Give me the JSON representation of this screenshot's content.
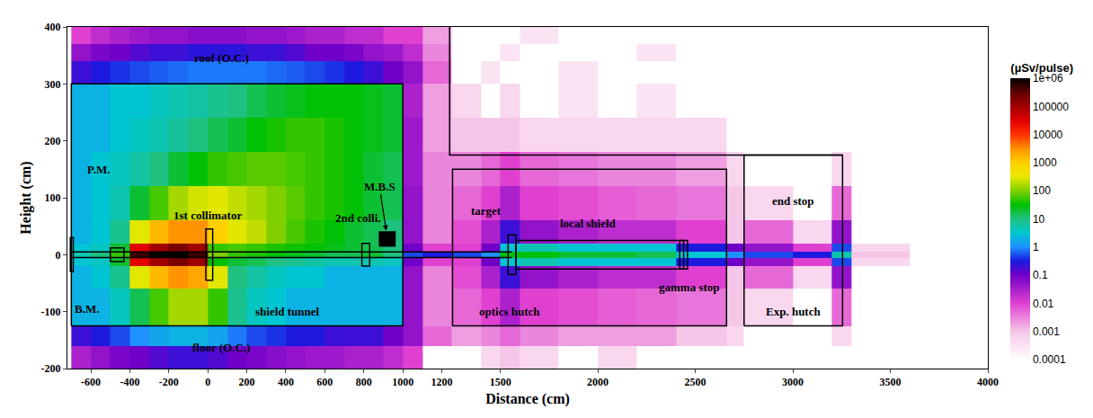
{
  "chart_data": {
    "type": "heatmap",
    "x_label": "Distance (cm)",
    "y_label": "Height (cm)",
    "xlim": [
      -720,
      4000
    ],
    "xticks": [
      -600,
      -400,
      -200,
      0,
      200,
      400,
      600,
      800,
      1000,
      1200,
      1500,
      2000,
      2500,
      3000,
      3500,
      4000
    ],
    "ylim": [
      -200,
      400
    ],
    "yticks": [
      -200,
      -100,
      0,
      100,
      200,
      300,
      400
    ],
    "x_edges": [
      -700,
      -600,
      -500,
      -400,
      -300,
      -200,
      -100,
      0,
      100,
      200,
      300,
      400,
      500,
      600,
      700,
      800,
      900,
      1000,
      1100,
      1250,
      1400,
      1500,
      1600,
      1800,
      2000,
      2200,
      2400,
      2660,
      2750,
      3000,
      3200,
      3300,
      3600,
      4000
    ],
    "y_edges": [
      -200,
      -160,
      -125,
      -60,
      -20,
      -6,
      6,
      20,
      60,
      120,
      180,
      240,
      300,
      340,
      370,
      400
    ],
    "cells": [
      [
        0.03,
        0.05,
        0.08,
        0.1,
        0.15,
        0.2,
        0.2,
        0.15,
        0.1,
        0.08,
        0.06,
        0.05,
        0.04,
        0.04,
        0.03,
        0.03,
        0.02,
        0.01,
        null,
        null,
        0.0005,
        0.001,
        0.0005,
        null,
        0.0005,
        null,
        null,
        null,
        null,
        null,
        null,
        null,
        null
      ],
      [
        0.2,
        0.3,
        0.5,
        1,
        1.5,
        2,
        2,
        1.5,
        0.8,
        0.5,
        0.4,
        0.3,
        0.3,
        0.2,
        0.2,
        0.2,
        0.1,
        0.05,
        0.005,
        0.002,
        0.003,
        0.005,
        0.003,
        0.002,
        0.002,
        0.002,
        0.001,
        0.0005,
        null,
        null,
        0.0005,
        null,
        null
      ],
      [
        2,
        2,
        4,
        15,
        60,
        150,
        150,
        50,
        8,
        4,
        3,
        2,
        2,
        2,
        2,
        2,
        2,
        0.05,
        0.003,
        0.005,
        0.01,
        0.03,
        0.01,
        0.008,
        0.006,
        0.005,
        0.004,
        0.001,
        0.0005,
        null,
        0.005,
        null,
        null
      ],
      [
        2,
        3,
        8,
        300,
        1500,
        3000,
        2000,
        300,
        10,
        6,
        4,
        3,
        3,
        2,
        2,
        2,
        2,
        0.05,
        0.003,
        0.008,
        0.03,
        0.2,
        0.05,
        0.03,
        0.02,
        0.02,
        0.01,
        0.001,
        0.005,
        0.0005,
        0.05,
        null,
        null
      ],
      [
        3,
        4,
        20,
        30000,
        100000,
        200000,
        100000,
        30,
        20,
        15,
        10,
        8,
        6,
        5,
        5,
        5,
        4,
        0.1,
        0.01,
        0.01,
        0.1,
        3,
        5,
        3,
        3,
        3,
        0.3,
        0.1,
        0.05,
        0.01,
        0.5,
        0.0005,
        null
      ],
      [
        5,
        10,
        50,
        500000,
        1000000,
        1000000,
        500000,
        100,
        50,
        40,
        30,
        25,
        20,
        15,
        15,
        20,
        10,
        0.5,
        0.3,
        0.5,
        1,
        30,
        30,
        20,
        20,
        15,
        3,
        1,
        0.5,
        0.3,
        5,
        0.001,
        null
      ],
      [
        3,
        4,
        20,
        30000,
        100000,
        200000,
        100000,
        50,
        60,
        50,
        40,
        35,
        30,
        25,
        20,
        15,
        10,
        0.1,
        0.01,
        0.01,
        0.1,
        3,
        5,
        3,
        3,
        3,
        0.3,
        0.1,
        0.05,
        0.01,
        0.5,
        0.0005,
        null
      ],
      [
        2,
        3,
        8,
        300,
        1500,
        3000,
        3000,
        1000,
        300,
        200,
        100,
        60,
        40,
        30,
        20,
        15,
        10,
        0.05,
        0.003,
        0.008,
        0.03,
        0.2,
        0.05,
        0.03,
        0.02,
        0.02,
        0.01,
        0.001,
        0.005,
        0.0005,
        0.05,
        null,
        null
      ],
      [
        2,
        3,
        5,
        20,
        60,
        150,
        250,
        300,
        200,
        150,
        100,
        70,
        50,
        40,
        30,
        20,
        15,
        0.05,
        0.003,
        0.005,
        0.01,
        0.03,
        0.01,
        0.008,
        0.006,
        0.005,
        0.004,
        0.001,
        0.0005,
        null,
        0.005,
        null,
        null
      ],
      [
        2,
        3,
        4,
        6,
        10,
        20,
        30,
        50,
        60,
        70,
        70,
        60,
        50,
        40,
        30,
        20,
        15,
        0.04,
        0.003,
        0.003,
        0.005,
        0.01,
        0.005,
        0.004,
        0.003,
        0.003,
        0.002,
        0.0005,
        null,
        null,
        0.0005,
        null,
        null
      ],
      [
        2,
        2,
        3,
        4,
        5,
        7,
        10,
        15,
        20,
        30,
        40,
        50,
        50,
        40,
        30,
        25,
        20,
        0.04,
        0.002,
        0.001,
        0.001,
        0.001,
        0.0005,
        0.0005,
        0.0005,
        0.0005,
        0.0005,
        null,
        null,
        null,
        null,
        null,
        null
      ],
      [
        2,
        2,
        3,
        3,
        4,
        5,
        6,
        8,
        10,
        15,
        20,
        25,
        30,
        30,
        30,
        25,
        20,
        0.03,
        0.002,
        0.0005,
        null,
        0.0005,
        null,
        0.0003,
        null,
        0.0003,
        null,
        null,
        null,
        null,
        null,
        null,
        null
      ],
      [
        0.2,
        0.3,
        0.4,
        0.5,
        0.6,
        0.7,
        0.8,
        0.8,
        0.8,
        0.8,
        0.7,
        0.6,
        0.5,
        0.4,
        0.3,
        0.2,
        0.1,
        0.05,
        0.005,
        null,
        0.0003,
        null,
        null,
        0.0003,
        null,
        null,
        null,
        null,
        null,
        null,
        null,
        null,
        null
      ],
      [
        0.05,
        0.08,
        0.1,
        0.15,
        0.2,
        0.2,
        0.25,
        0.25,
        0.25,
        0.2,
        0.2,
        0.15,
        0.1,
        0.1,
        0.08,
        0.05,
        0.04,
        0.02,
        0.003,
        null,
        null,
        0.0003,
        null,
        null,
        null,
        0.0003,
        null,
        null,
        null,
        null,
        null,
        null,
        null
      ],
      [
        0.01,
        0.02,
        0.03,
        0.04,
        0.05,
        0.05,
        0.06,
        0.06,
        0.06,
        0.05,
        0.05,
        0.04,
        0.03,
        0.03,
        0.02,
        0.02,
        0.01,
        0.01,
        0.002,
        null,
        null,
        null,
        0.0003,
        null,
        null,
        null,
        null,
        null,
        null,
        null,
        null,
        null,
        null
      ]
    ],
    "colorbar": {
      "title": "(µSv/pulse)",
      "range": [
        0.0001,
        1000000
      ],
      "ticks": [
        {
          "value": 1000000,
          "label": "1e+06"
        },
        100000,
        10000,
        1000,
        100,
        10,
        1,
        0.1,
        0.01,
        0.001,
        0.0001
      ]
    },
    "outlines": [
      {
        "x": [
          -700,
          1000,
          1000,
          -700,
          -700
        ],
        "y": [
          -125,
          -125,
          300,
          300,
          -125
        ]
      },
      {
        "x": [
          1240,
          1240,
          3255
        ],
        "y": [
          400,
          175,
          175
        ]
      },
      {
        "x": [
          1255,
          2660,
          2660,
          1255,
          1255
        ],
        "y": [
          -125,
          -125,
          150,
          150,
          -125
        ]
      },
      {
        "x": [
          2750,
          3255,
          3255,
          2750,
          2750
        ],
        "y": [
          -125,
          -125,
          175,
          175,
          -125
        ]
      },
      {
        "x": [
          -700,
          1560
        ],
        "y": [
          5,
          5
        ]
      },
      {
        "x": [
          -700,
          1560
        ],
        "y": [
          -5,
          -5
        ]
      },
      {
        "x": [
          -705,
          -690,
          -690,
          -705,
          -705
        ],
        "y": [
          -30,
          -30,
          30,
          30,
          -30
        ]
      },
      {
        "x": [
          -500,
          -430,
          -430,
          -500,
          -500
        ],
        "y": [
          -12,
          -12,
          12,
          12,
          -12
        ]
      },
      {
        "x": [
          -10,
          25,
          25,
          -10,
          -10
        ],
        "y": [
          -45,
          -45,
          45,
          45,
          -45
        ]
      },
      {
        "x": [
          790,
          830,
          830,
          790,
          790
        ],
        "y": [
          -20,
          -20,
          20,
          20,
          -20
        ]
      },
      {
        "x": [
          880,
          960,
          960,
          880,
          880
        ],
        "y": [
          15,
          15,
          40,
          40,
          15
        ],
        "type": "filled"
      },
      {
        "x": [
          1540,
          1580,
          1580,
          1540,
          1540
        ],
        "y": [
          -35,
          -35,
          35,
          35,
          -35
        ]
      },
      {
        "x": [
          1580,
          2440,
          2440,
          1580,
          1580
        ],
        "y": [
          -25,
          -25,
          25,
          25,
          -25
        ]
      },
      {
        "x": [
          2420,
          2460,
          2460,
          2420,
          2420
        ],
        "y": [
          -25,
          -25,
          25,
          25,
          -25
        ]
      }
    ],
    "annotations": [
      {
        "text": "roof (O.C.)",
        "x": 70,
        "y": 345
      },
      {
        "text": "floor (O.C.)",
        "x": 70,
        "y": -163
      },
      {
        "text": "P.M.",
        "x": -560,
        "y": 150
      },
      {
        "text": "B.M.",
        "x": -620,
        "y": -95
      },
      {
        "text": "1st collimator",
        "x": 0,
        "y": 70
      },
      {
        "text": "2nd colli.",
        "x": 770,
        "y": 65
      },
      {
        "text": "M.B.S",
        "x": 880,
        "y": 120,
        "points_to": [
          915,
          42
        ]
      },
      {
        "text": "shield tunnel",
        "x": 410,
        "y": -100
      },
      {
        "text": "target",
        "x": 1430,
        "y": 77
      },
      {
        "text": "local shield",
        "x": 1950,
        "y": 55
      },
      {
        "text": "optics hutch",
        "x": 1550,
        "y": -100
      },
      {
        "text": "gamma stop",
        "x": 2470,
        "y": -57
      },
      {
        "text": "end stop",
        "x": 3000,
        "y": 95
      },
      {
        "text": "Exp. hutch",
        "x": 3000,
        "y": -100
      }
    ]
  }
}
